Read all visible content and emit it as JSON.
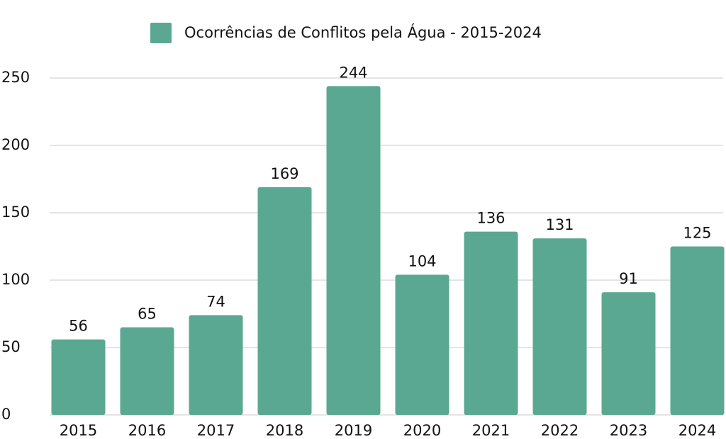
{
  "chart_data": {
    "type": "bar",
    "categories": [
      "2015",
      "2016",
      "2017",
      "2018",
      "2019",
      "2020",
      "2021",
      "2022",
      "2023",
      "2024"
    ],
    "series": [
      {
        "name": "Ocorrências de Conflitos pela Água - 2015-2024",
        "color": "#5ba892",
        "values": [
          56,
          65,
          74,
          169,
          244,
          104,
          136,
          131,
          91,
          125
        ]
      }
    ],
    "ylim": [
      0,
      250
    ],
    "yticks": [
      0,
      50,
      100,
      150,
      200,
      250
    ],
    "grid": true,
    "legend": "top"
  }
}
